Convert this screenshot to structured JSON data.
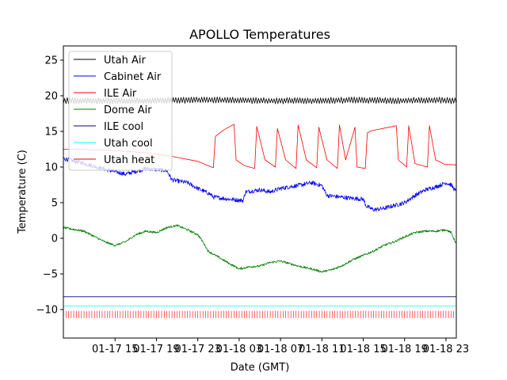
{
  "chart_data": {
    "type": "line",
    "title": "APOLLO Temperatures",
    "xlabel": "Date (GMT)",
    "ylabel": "Temperature (C)",
    "x_unit": "hours since 2019-01-17 10:00 GMT",
    "xlim": [
      0,
      38
    ],
    "ylim": [
      -14,
      27
    ],
    "xticks": [
      {
        "value": 5,
        "label": "01-17 15"
      },
      {
        "value": 9,
        "label": "01-17 19"
      },
      {
        "value": 13,
        "label": "01-17 23"
      },
      {
        "value": 17,
        "label": "01-18 03"
      },
      {
        "value": 21,
        "label": "01-18 07"
      },
      {
        "value": 25,
        "label": "01-18 11"
      },
      {
        "value": 29,
        "label": "01-18 15"
      },
      {
        "value": 33,
        "label": "01-18 19"
      },
      {
        "value": 37,
        "label": "01-18 23"
      }
    ],
    "yticks": [
      {
        "value": -10,
        "label": "−10"
      },
      {
        "value": -5,
        "label": "−5"
      },
      {
        "value": 0,
        "label": "0"
      },
      {
        "value": 5,
        "label": "5"
      },
      {
        "value": 10,
        "label": "10"
      },
      {
        "value": 15,
        "label": "15"
      },
      {
        "value": 20,
        "label": "20"
      },
      {
        "value": 25,
        "label": "25"
      }
    ],
    "grid": false,
    "legend_position": "top-left",
    "series": [
      {
        "name": "Utah Air",
        "color": "#000000",
        "style": "oscillating",
        "amplitude": 0.45,
        "period": 0.25,
        "x": [
          0,
          4,
          8,
          12,
          16,
          20,
          24,
          28,
          32,
          36,
          38
        ],
        "y": [
          19.3,
          19.3,
          19.3,
          19.4,
          19.4,
          19.3,
          19.3,
          19.4,
          19.3,
          19.4,
          19.3
        ]
      },
      {
        "name": "Cabinet Air",
        "color": "#0000ff",
        "style": "noisy",
        "noise": 0.3,
        "x": [
          0,
          2,
          4,
          6,
          8,
          10,
          10.5,
          12,
          13,
          14.2,
          14.5,
          16,
          17.4,
          17.6,
          19,
          20,
          21,
          23,
          24,
          25,
          25.5,
          28,
          29,
          29.3,
          30,
          31,
          32,
          33,
          34,
          35,
          36,
          37,
          37.5,
          38
        ],
        "y": [
          11.2,
          10.5,
          9.7,
          9.0,
          9.8,
          9.5,
          8.2,
          7.8,
          7.0,
          6.2,
          5.8,
          5.5,
          5.3,
          6.5,
          6.8,
          6.5,
          7.0,
          7.5,
          7.8,
          7.4,
          6.0,
          5.6,
          5.5,
          4.5,
          4.0,
          4.2,
          4.6,
          5.0,
          6.0,
          6.8,
          7.2,
          7.8,
          7.5,
          6.5
        ]
      },
      {
        "name": "ILE Air",
        "color": "#ff0000",
        "style": "line",
        "x": [
          0,
          4,
          8,
          10.5,
          13,
          14.5,
          14.7,
          15.5,
          16.5,
          16.7,
          17.5,
          18.5,
          18.7,
          19.5,
          20.5,
          20.7,
          21.5,
          22.5,
          22.7,
          23.5,
          24.5,
          24.7,
          25.5,
          26.5,
          26.7,
          27.3,
          28.2,
          28.4,
          29.2,
          29.4,
          29.8,
          32.2,
          32.4,
          33.2,
          33.4,
          34.0,
          35.2,
          35.4,
          36.0,
          36.6,
          36.8,
          38
        ],
        "y": [
          12.5,
          12.4,
          12.0,
          11.5,
          10.8,
          9.9,
          14.3,
          15.2,
          16.0,
          11.0,
          10.2,
          9.8,
          15.7,
          11.0,
          10.0,
          15.4,
          11.0,
          9.8,
          15.9,
          11.0,
          9.9,
          15.6,
          11.0,
          9.8,
          15.9,
          11.0,
          15.6,
          10.0,
          9.8,
          14.8,
          15.1,
          15.8,
          11.0,
          10.0,
          15.8,
          10.5,
          10.0,
          15.8,
          11.0,
          10.6,
          10.4,
          10.3
        ]
      },
      {
        "name": "Dome Air",
        "color": "#008000",
        "style": "noisy",
        "noise": 0.15,
        "x": [
          0,
          2,
          4,
          5,
          6,
          7,
          8,
          9,
          10,
          11,
          12,
          13,
          13.5,
          14,
          16,
          17,
          18,
          19,
          20,
          21,
          22,
          23,
          24,
          25,
          26,
          27,
          28,
          29,
          30,
          31,
          32,
          33,
          34,
          35,
          36,
          37,
          37.5,
          38
        ],
        "y": [
          1.5,
          1.0,
          -0.5,
          -1.0,
          -0.5,
          0.5,
          1.0,
          0.8,
          1.5,
          1.8,
          1.2,
          0.5,
          -0.5,
          -1.8,
          -3.5,
          -4.3,
          -4.0,
          -3.9,
          -3.4,
          -3.2,
          -3.6,
          -4.0,
          -4.3,
          -4.7,
          -4.4,
          -3.8,
          -3.0,
          -2.4,
          -1.8,
          -1.0,
          -0.5,
          0.2,
          0.8,
          1.0,
          1.0,
          1.2,
          0.8,
          -0.8
        ]
      },
      {
        "name": "ILE cool",
        "color": "#000080",
        "style": "line",
        "x": [
          0,
          38
        ],
        "y": [
          -8.2,
          -8.2
        ]
      },
      {
        "name": "Utah cool",
        "color": "#00ffff",
        "style": "line",
        "x": [
          0,
          38
        ],
        "y": [
          -9.5,
          -9.5
        ]
      },
      {
        "name": "Utah heat",
        "color": "#ff0000",
        "style": "pulses",
        "low": -11.2,
        "high": -10.2,
        "pulse_spacing": 0.25,
        "x": [
          0,
          38
        ],
        "y": [
          -10.5,
          -10.5
        ]
      }
    ]
  }
}
